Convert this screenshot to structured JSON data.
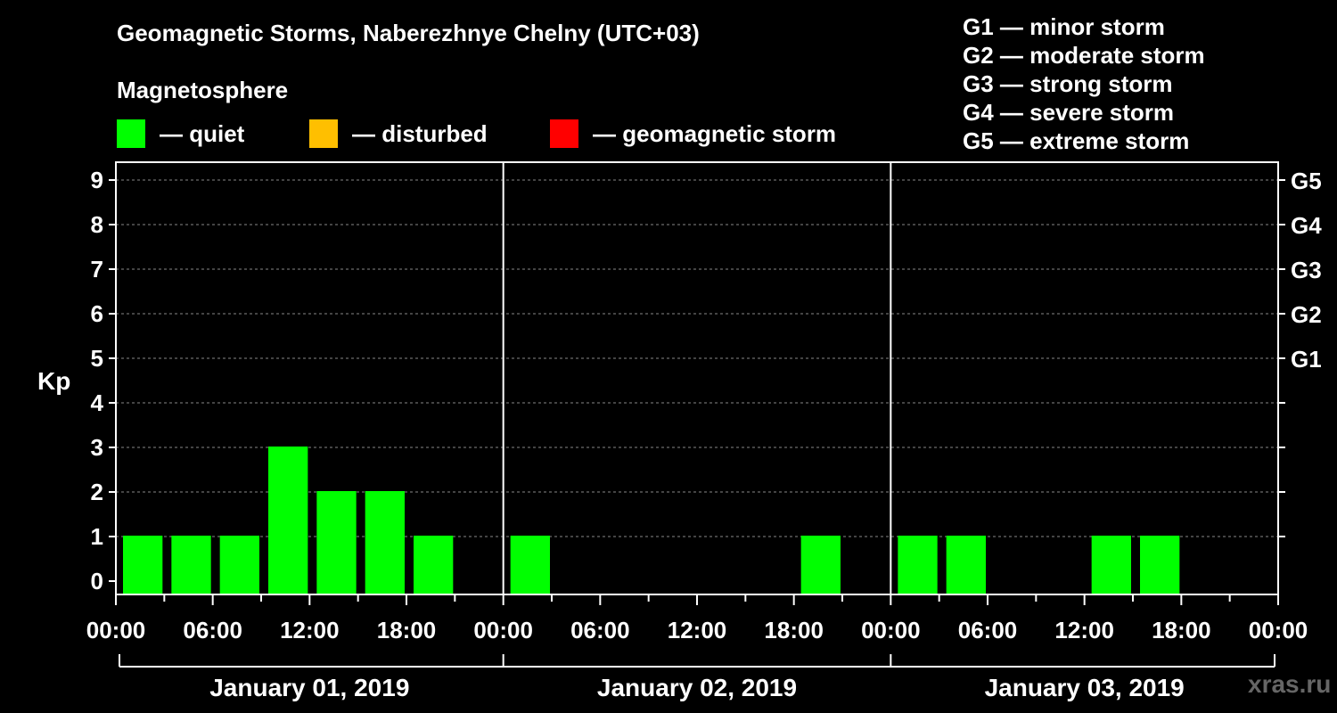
{
  "title": "Geomagnetic Storms, Naberezhnye Chelny (UTC+03)",
  "subtitle": "Magnetosphere",
  "legend": [
    {
      "label": "— quiet",
      "color": "#00ff00"
    },
    {
      "label": "— disturbed",
      "color": "#ffbf00"
    },
    {
      "label": "— geomagnetic storm",
      "color": "#ff0000"
    }
  ],
  "storm_scale": [
    "G1 — minor storm",
    "G2 — moderate storm",
    "G3 — strong storm",
    "G4 — severe storm",
    "G5 — extreme storm"
  ],
  "watermark": "xras.ru",
  "chart_data": {
    "type": "bar",
    "title": "Geomagnetic Storms, Naberezhnye Chelny (UTC+03)",
    "ylabel": "Kp",
    "ylim": [
      0,
      9
    ],
    "yticks": [
      "0",
      "1",
      "2",
      "3",
      "4",
      "5",
      "6",
      "7",
      "8",
      "9"
    ],
    "right_ticks": [
      {
        "kp": 5,
        "label": "G1"
      },
      {
        "kp": 6,
        "label": "G2"
      },
      {
        "kp": 7,
        "label": "G3"
      },
      {
        "kp": 8,
        "label": "G4"
      },
      {
        "kp": 9,
        "label": "G5"
      }
    ],
    "grid": true,
    "time_ticks": [
      "00:00",
      "06:00",
      "12:00",
      "18:00",
      "00:00",
      "06:00",
      "12:00",
      "18:00",
      "00:00",
      "06:00",
      "12:00",
      "18:00",
      "00:00"
    ],
    "days": [
      "January 01, 2019",
      "January 02, 2019",
      "January 03, 2019"
    ],
    "interval_hours": 3,
    "series": [
      {
        "name": "Kp",
        "color": "#00ff00",
        "values": [
          1,
          1,
          1,
          3,
          2,
          2,
          1,
          0,
          1,
          0,
          0,
          0,
          0,
          0,
          1,
          0,
          1,
          1,
          0,
          0,
          1,
          1,
          0,
          0
        ]
      }
    ]
  }
}
